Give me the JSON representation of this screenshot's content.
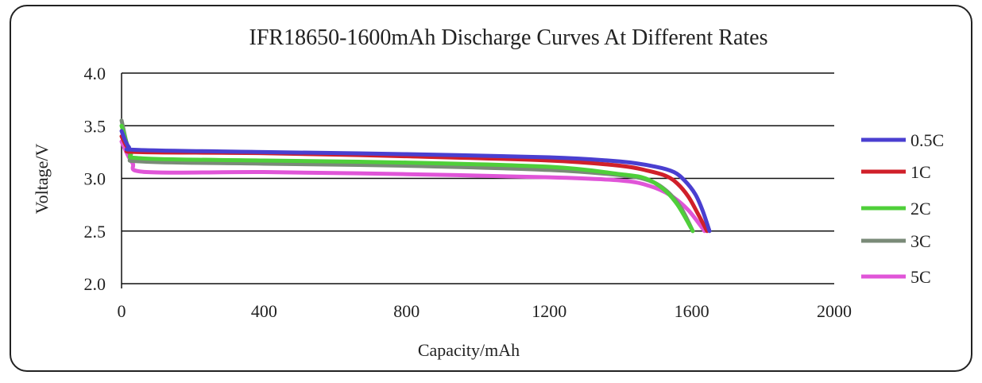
{
  "chart_data": {
    "type": "line",
    "title": "IFR18650-1600mAh Discharge Curves At Different Rates",
    "xlabel": "Capacity/mAh",
    "ylabel": "Voltage/V",
    "xlim": [
      0,
      2000
    ],
    "ylim": [
      2.0,
      4.0
    ],
    "xticks": [
      "0",
      "400",
      "800",
      "1200",
      "1600",
      "2000"
    ],
    "yticks": [
      "2.0",
      "2.5",
      "3.0",
      "3.5",
      "4.0"
    ],
    "grid": "horizontal",
    "legend_position": "right",
    "series": [
      {
        "name": "0.5C",
        "color": "#4a3fd0",
        "points": [
          [
            0,
            3.45
          ],
          [
            20,
            3.3
          ],
          [
            50,
            3.27
          ],
          [
            400,
            3.25
          ],
          [
            800,
            3.23
          ],
          [
            1200,
            3.2
          ],
          [
            1400,
            3.16
          ],
          [
            1500,
            3.11
          ],
          [
            1550,
            3.06
          ],
          [
            1580,
            2.98
          ],
          [
            1610,
            2.85
          ],
          [
            1630,
            2.7
          ],
          [
            1650,
            2.5
          ]
        ]
      },
      {
        "name": "1C",
        "color": "#d0202a",
        "points": [
          [
            0,
            3.4
          ],
          [
            20,
            3.28
          ],
          [
            50,
            3.25
          ],
          [
            400,
            3.24
          ],
          [
            800,
            3.21
          ],
          [
            1200,
            3.17
          ],
          [
            1400,
            3.12
          ],
          [
            1480,
            3.07
          ],
          [
            1530,
            3.02
          ],
          [
            1560,
            2.95
          ],
          [
            1590,
            2.83
          ],
          [
            1615,
            2.68
          ],
          [
            1643,
            2.5
          ]
        ]
      },
      {
        "name": "2C",
        "color": "#4fcf3a",
        "points": [
          [
            0,
            3.5
          ],
          [
            25,
            3.25
          ],
          [
            60,
            3.19
          ],
          [
            400,
            3.17
          ],
          [
            800,
            3.15
          ],
          [
            1200,
            3.11
          ],
          [
            1400,
            3.04
          ],
          [
            1470,
            3.0
          ],
          [
            1520,
            2.9
          ],
          [
            1560,
            2.75
          ],
          [
            1603,
            2.5
          ]
        ]
      },
      {
        "name": "3C",
        "color": "#7a8a78",
        "points": [
          [
            0,
            3.55
          ],
          [
            25,
            3.22
          ],
          [
            60,
            3.16
          ],
          [
            400,
            3.14
          ],
          [
            800,
            3.12
          ],
          [
            1200,
            3.08
          ],
          [
            1400,
            3.03
          ],
          [
            1480,
            2.98
          ],
          [
            1530,
            2.88
          ],
          [
            1570,
            2.72
          ],
          [
            1603,
            2.5
          ]
        ]
      },
      {
        "name": "5C",
        "color": "#e055d8",
        "points": [
          [
            0,
            3.35
          ],
          [
            30,
            3.15
          ],
          [
            70,
            3.06
          ],
          [
            400,
            3.06
          ],
          [
            800,
            3.04
          ],
          [
            1200,
            3.01
          ],
          [
            1400,
            2.98
          ],
          [
            1480,
            2.93
          ],
          [
            1540,
            2.84
          ],
          [
            1590,
            2.7
          ],
          [
            1636,
            2.5
          ]
        ]
      }
    ]
  }
}
